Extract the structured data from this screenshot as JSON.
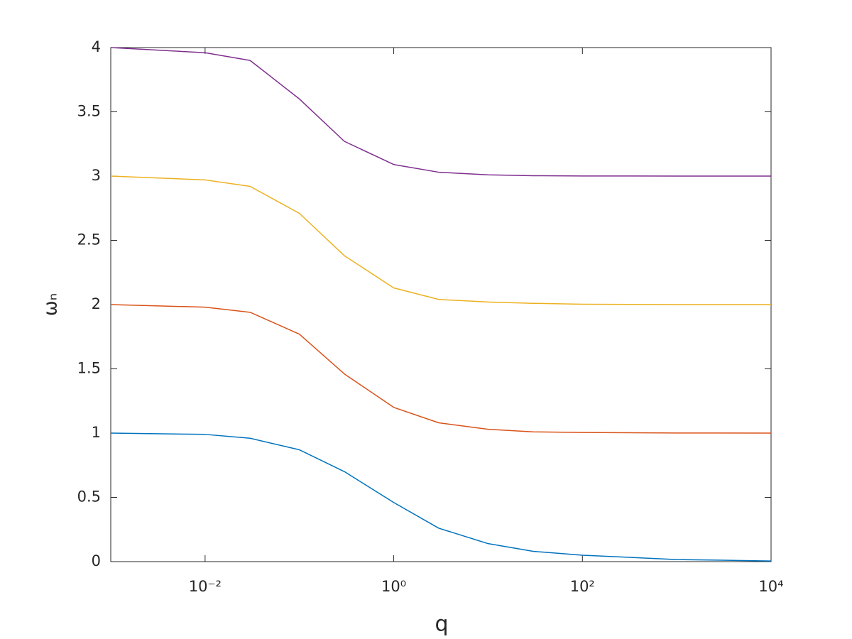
{
  "chart_data": {
    "type": "line",
    "xlabel": "q",
    "ylabel": "ωₙ",
    "xscale": "log",
    "x": [
      0.001,
      0.01,
      0.03,
      0.1,
      0.3,
      1,
      3,
      10,
      30,
      100,
      1000,
      10000
    ],
    "series": [
      {
        "color": "#0072BD",
        "values": [
          1.0,
          0.99,
          0.96,
          0.87,
          0.7,
          0.46,
          0.26,
          0.14,
          0.08,
          0.05,
          0.016,
          0.005
        ]
      },
      {
        "color": "#D95319",
        "values": [
          2.0,
          1.98,
          1.94,
          1.77,
          1.46,
          1.2,
          1.08,
          1.03,
          1.01,
          1.005,
          1.001,
          1.0
        ]
      },
      {
        "color": "#EDB120",
        "values": [
          3.0,
          2.97,
          2.92,
          2.71,
          2.38,
          2.13,
          2.04,
          2.02,
          2.01,
          2.003,
          2.0,
          2.0
        ]
      },
      {
        "color": "#7E2F8E",
        "values": [
          4.0,
          3.96,
          3.9,
          3.6,
          3.27,
          3.09,
          3.03,
          3.01,
          3.003,
          3.001,
          3.0,
          3.0
        ]
      }
    ],
    "xlim": [
      0.001,
      10000
    ],
    "xticks": [
      {
        "value": 0.01,
        "label": "10⁻²"
      },
      {
        "value": 1,
        "label": "10⁰"
      },
      {
        "value": 100,
        "label": "10²"
      },
      {
        "value": 10000,
        "label": "10⁴"
      }
    ],
    "ylim": [
      0,
      4
    ],
    "yticks": [
      0,
      0.5,
      1,
      1.5,
      2,
      2.5,
      3,
      3.5,
      4
    ],
    "grid": false
  }
}
